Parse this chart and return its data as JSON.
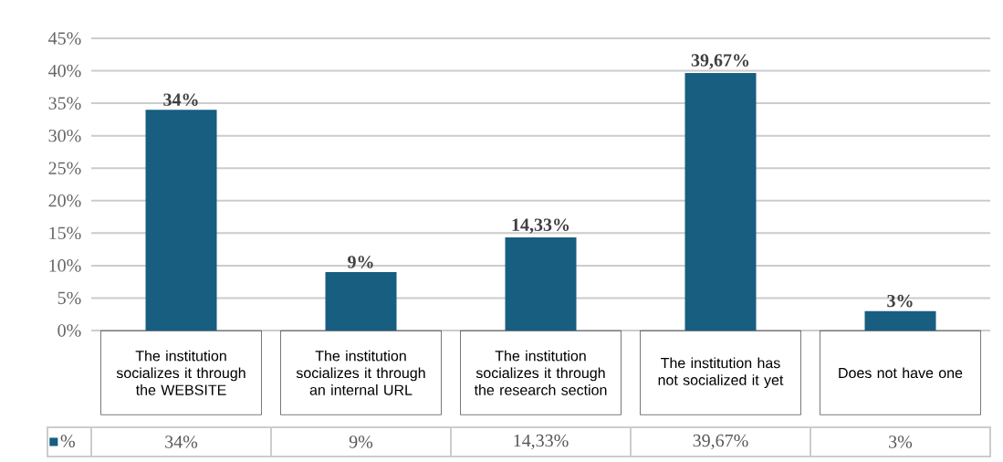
{
  "chart_data": {
    "type": "bar",
    "categories": [
      "The institution socializes it through the WEBSITE",
      "The institution socializes it through an internal URL",
      "The institution socializes it through the research section",
      "The institution has not socialized it yet",
      "Does not have one"
    ],
    "series": [
      {
        "name": "%",
        "color": "#175e80",
        "values": [
          34,
          9,
          14.33,
          39.67,
          3
        ],
        "value_labels": [
          "34%",
          "9%",
          "14,33%",
          "39,67%",
          "3%"
        ]
      }
    ],
    "ylim": [
      0,
      45
    ],
    "yticks": [
      {
        "value": 0,
        "label": "0%"
      },
      {
        "value": 5,
        "label": "5%"
      },
      {
        "value": 10,
        "label": "10%"
      },
      {
        "value": 15,
        "label": "15%"
      },
      {
        "value": 20,
        "label": "20%"
      },
      {
        "value": 25,
        "label": "25%"
      },
      {
        "value": 30,
        "label": "30%"
      },
      {
        "value": 35,
        "label": "35%"
      },
      {
        "value": 40,
        "label": "40%"
      },
      {
        "value": 45,
        "label": "45%"
      }
    ],
    "grid": "y",
    "legend": "bottom"
  }
}
